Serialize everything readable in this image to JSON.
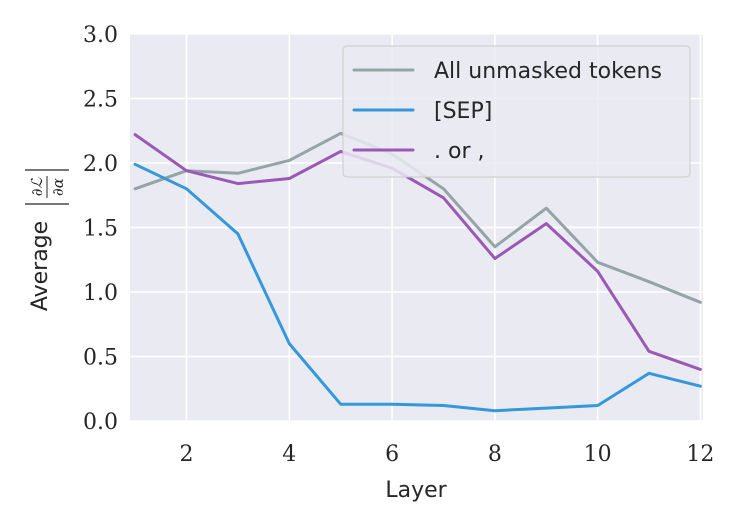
{
  "chart_data": {
    "type": "line",
    "xlabel": "Layer",
    "ylabel_prefix": "Average",
    "ylabel_math": {
      "numerator": "∂ℒ",
      "denominator": "∂α"
    },
    "xlim": [
      0.9,
      12.05
    ],
    "ylim": [
      0.0,
      3.0
    ],
    "xticks": [
      2,
      4,
      6,
      8,
      10,
      12
    ],
    "yticks": [
      0.0,
      0.5,
      1.0,
      1.5,
      2.0,
      2.5,
      3.0
    ],
    "xtick_labels": [
      "2",
      "4",
      "6",
      "8",
      "10",
      "12"
    ],
    "ytick_labels": [
      "0.0",
      "0.5",
      "1.0",
      "1.5",
      "2.0",
      "2.5",
      "3.0"
    ],
    "grid": true,
    "legend_position": "top-right",
    "x": [
      1,
      2,
      3,
      4,
      5,
      6,
      7,
      8,
      9,
      10,
      11,
      12
    ],
    "series": [
      {
        "name": "All unmasked tokens",
        "color": "#95a5a6",
        "values": [
          1.8,
          1.94,
          1.92,
          2.02,
          2.23,
          2.07,
          1.8,
          1.35,
          1.65,
          1.23,
          1.08,
          0.92
        ]
      },
      {
        "name": "[SEP]",
        "color": "#3498db",
        "values": [
          1.99,
          1.8,
          1.45,
          0.6,
          0.13,
          0.13,
          0.12,
          0.08,
          0.1,
          0.12,
          0.37,
          0.27
        ]
      },
      {
        "name": ". or ,",
        "color": "#9b59b6",
        "values": [
          2.22,
          1.94,
          1.84,
          1.88,
          2.09,
          1.96,
          1.73,
          1.26,
          1.53,
          1.16,
          0.54,
          0.4
        ]
      }
    ]
  }
}
